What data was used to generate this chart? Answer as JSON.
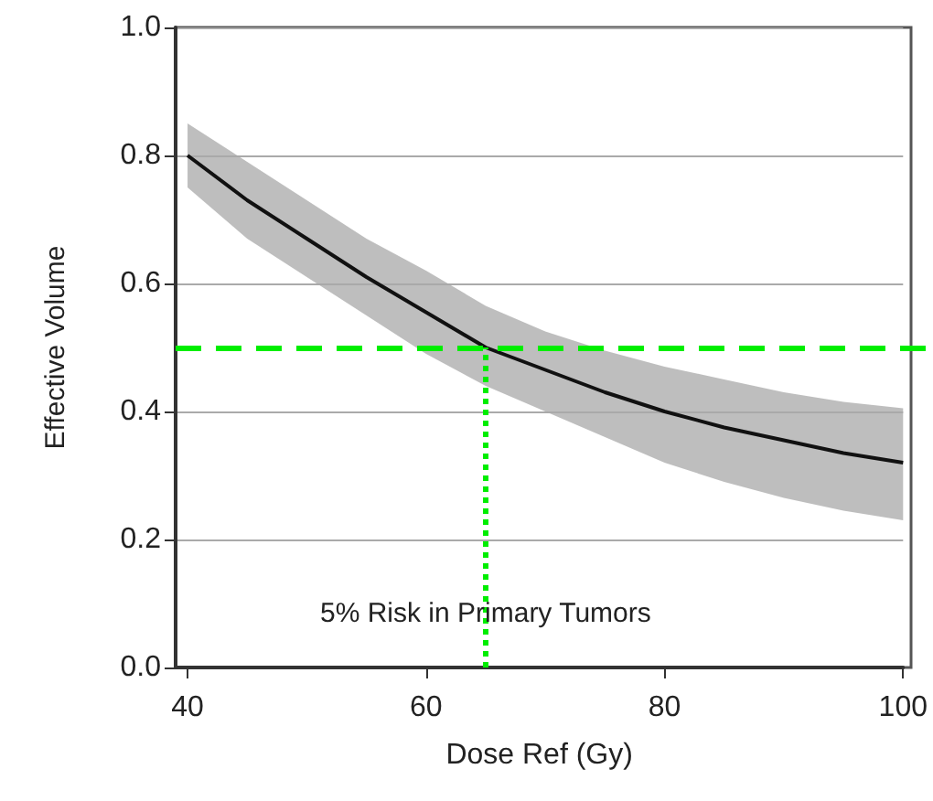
{
  "chart_data": {
    "type": "line",
    "xlabel": "Dose Ref (Gy)",
    "ylabel": "Effective Volume",
    "xlim": [
      39,
      100
    ],
    "xticks": [
      40,
      60,
      80,
      100
    ],
    "ylim": [
      0,
      1
    ],
    "yticks": [
      {
        "value": 0,
        "label": "0.0"
      },
      0.2,
      0.4,
      0.6,
      0.8,
      {
        "value": 1,
        "label": "1.0"
      }
    ],
    "grid": "y",
    "marker": "none",
    "line_style": "solid",
    "series": [
      {
        "color": "#111111",
        "x": [
          40,
          45,
          50,
          55,
          60,
          65,
          70,
          75,
          80,
          85,
          90,
          95,
          100
        ],
        "values": [
          0.8,
          0.73,
          0.67,
          0.61,
          0.555,
          0.5,
          0.465,
          0.43,
          0.4,
          0.375,
          0.355,
          0.335,
          0.32
        ],
        "lower": [
          0.75,
          0.67,
          0.61,
          0.55,
          0.49,
          0.44,
          0.4,
          0.36,
          0.32,
          0.29,
          0.265,
          0.245,
          0.23
        ],
        "upper": [
          0.85,
          0.79,
          0.73,
          0.67,
          0.62,
          0.565,
          0.525,
          0.495,
          0.47,
          0.45,
          0.43,
          0.415,
          0.405
        ]
      }
    ],
    "ref_lines": [
      {
        "axis": "y",
        "value": 0.5,
        "color": "#00ee00",
        "line_style": "dashed"
      },
      {
        "axis": "x",
        "value": 65,
        "color": "#00ee00",
        "line_style": "dotted"
      }
    ],
    "annotations": [
      "5% Risk in Primary Tumors"
    ]
  }
}
